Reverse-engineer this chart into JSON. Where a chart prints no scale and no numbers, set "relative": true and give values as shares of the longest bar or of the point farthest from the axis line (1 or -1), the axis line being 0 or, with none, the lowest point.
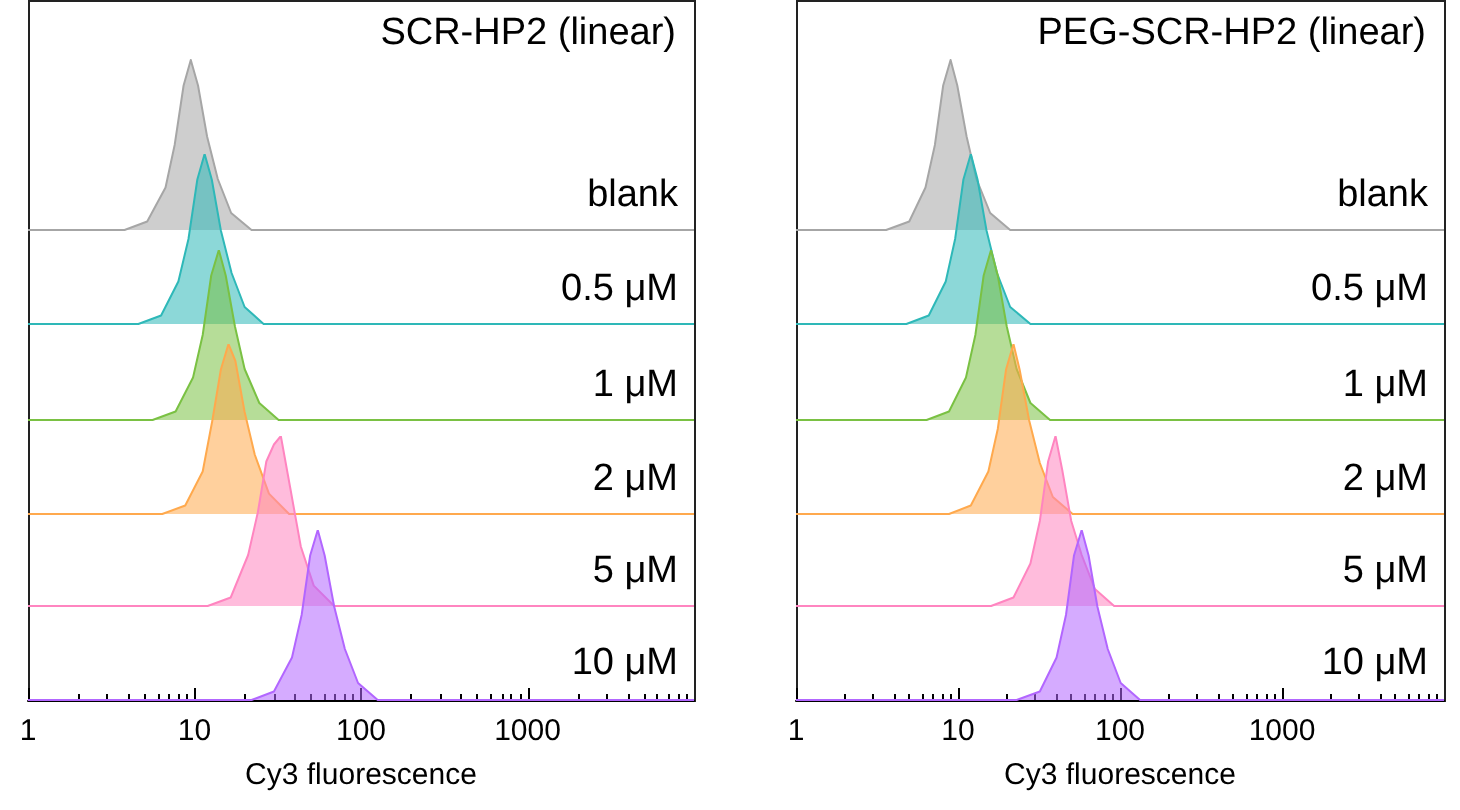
{
  "chart_data": [
    {
      "type": "area",
      "title": "SCR-HP2 (linear)",
      "relative": true,
      "log": "x",
      "xlim": [
        1,
        10000
      ],
      "xticks": [
        1,
        10,
        100,
        1000
      ],
      "tick_labels": false,
      "series": [
        {
          "name": "blank",
          "color": "#a6a6a6",
          "x": [
            1,
            3.8,
            5.2,
            6.7,
            7.6,
            8.6,
            9.5,
            10.5,
            11.9,
            13.8,
            16.6,
            22,
            10000
          ],
          "values": [
            0,
            0,
            0.05,
            0.25,
            0.5,
            0.85,
            1,
            0.85,
            0.55,
            0.3,
            0.1,
            0,
            0
          ]
        }
      ]
    },
    {
      "type": "area",
      "relative": true,
      "log": "x",
      "xlim": [
        1,
        10000
      ],
      "xticks": [
        1,
        10,
        100,
        1000
      ],
      "tick_labels": false,
      "series": [
        {
          "name": "0.5 μM",
          "color": "#2eb8b8",
          "x": [
            1,
            4.6,
            6.3,
            8,
            9.2,
            10.4,
            11.5,
            12.7,
            14.4,
            16.7,
            20,
            26,
            10000
          ],
          "values": [
            0,
            0,
            0.05,
            0.25,
            0.5,
            0.85,
            1,
            0.85,
            0.55,
            0.3,
            0.1,
            0,
            0
          ]
        }
      ]
    },
    {
      "type": "area",
      "relative": true,
      "log": "x",
      "xlim": [
        1,
        10000
      ],
      "xticks": [
        1,
        10,
        100,
        1000
      ],
      "tick_labels": false,
      "series": [
        {
          "name": "1 μM",
          "color": "#7ac143",
          "x": [
            1,
            5.6,
            7.7,
            9.8,
            11.2,
            12.6,
            14,
            15.4,
            17.5,
            20,
            24.5,
            32,
            10000
          ],
          "values": [
            0,
            0,
            0.05,
            0.25,
            0.5,
            0.85,
            1,
            0.85,
            0.55,
            0.3,
            0.1,
            0,
            0
          ]
        }
      ]
    },
    {
      "type": "area",
      "relative": true,
      "log": "x",
      "xlim": [
        1,
        10000
      ],
      "xticks": [
        1,
        10,
        100,
        1000
      ],
      "tick_labels": false,
      "series": [
        {
          "name": "2 μM",
          "color": "#ffa94d",
          "x": [
            1,
            6.4,
            8.8,
            11.2,
            12.8,
            14.4,
            16,
            17.6,
            20,
            23,
            28,
            37,
            10000
          ],
          "values": [
            0,
            0,
            0.05,
            0.25,
            0.55,
            0.85,
            1,
            0.9,
            0.6,
            0.35,
            0.12,
            0,
            0
          ]
        }
      ]
    },
    {
      "type": "area",
      "relative": true,
      "log": "x",
      "xlim": [
        1,
        10000
      ],
      "xticks": [
        1,
        10,
        100,
        1000
      ],
      "tick_labels": false,
      "series": [
        {
          "name": "5 μM",
          "color": "#ff85c0",
          "x": [
            1,
            12,
            16.5,
            21,
            24,
            27,
            30,
            33,
            37.5,
            43.5,
            52,
            69,
            10000
          ],
          "values": [
            0,
            0,
            0.05,
            0.3,
            0.55,
            0.85,
            0.95,
            1,
            0.7,
            0.35,
            0.12,
            0,
            0
          ]
        }
      ]
    },
    {
      "type": "area",
      "xlabel": "Cy3 fluorescence",
      "relative": true,
      "log": "x",
      "xlim": [
        1,
        10000
      ],
      "xticks": [
        1,
        10,
        100,
        1000
      ],
      "tick_labels": "x",
      "series": [
        {
          "name": "10 μM",
          "color": "#b266ff",
          "x": [
            1,
            22,
            30,
            38.5,
            44,
            49.5,
            55,
            60.5,
            69,
            80,
            96,
            126,
            10000
          ],
          "values": [
            0,
            0,
            0.05,
            0.25,
            0.5,
            0.85,
            1,
            0.85,
            0.55,
            0.3,
            0.1,
            0,
            0
          ]
        }
      ]
    },
    {
      "type": "area",
      "title": "PEG-SCR-HP2 (linear)",
      "relative": true,
      "log": "x",
      "xlim": [
        1,
        10000
      ],
      "xticks": [
        1,
        10,
        100,
        1000
      ],
      "tick_labels": false,
      "series": [
        {
          "name": "blank",
          "color": "#a6a6a6",
          "x": [
            1,
            3.6,
            5,
            6.3,
            7.2,
            8.1,
            9,
            9.9,
            11.3,
            13,
            15.8,
            21,
            10000
          ],
          "values": [
            0,
            0,
            0.05,
            0.25,
            0.5,
            0.85,
            1,
            0.85,
            0.55,
            0.3,
            0.1,
            0,
            0
          ]
        }
      ]
    },
    {
      "type": "area",
      "relative": true,
      "log": "x",
      "xlim": [
        1,
        10000
      ],
      "xticks": [
        1,
        10,
        100,
        1000
      ],
      "tick_labels": false,
      "series": [
        {
          "name": "0.5 μM",
          "color": "#2eb8b8",
          "x": [
            1,
            4.8,
            6.6,
            8.4,
            9.6,
            10.8,
            12,
            13.2,
            15,
            17.4,
            21,
            28,
            10000
          ],
          "values": [
            0,
            0,
            0.05,
            0.25,
            0.5,
            0.85,
            1,
            0.85,
            0.55,
            0.3,
            0.1,
            0,
            0
          ]
        }
      ]
    },
    {
      "type": "area",
      "relative": true,
      "log": "x",
      "xlim": [
        1,
        10000
      ],
      "xticks": [
        1,
        10,
        100,
        1000
      ],
      "tick_labels": false,
      "series": [
        {
          "name": "1 μM",
          "color": "#7ac143",
          "x": [
            1,
            6.4,
            8.8,
            11.2,
            12.8,
            14.4,
            16,
            17.6,
            20,
            23,
            28,
            37,
            10000
          ],
          "values": [
            0,
            0,
            0.05,
            0.25,
            0.5,
            0.85,
            1,
            0.85,
            0.55,
            0.3,
            0.1,
            0,
            0
          ]
        }
      ]
    },
    {
      "type": "area",
      "relative": true,
      "log": "x",
      "xlim": [
        1,
        10000
      ],
      "xticks": [
        1,
        10,
        100,
        1000
      ],
      "tick_labels": false,
      "series": [
        {
          "name": "2 μM",
          "color": "#ffa94d",
          "x": [
            1,
            8.8,
            12,
            15.4,
            17.6,
            19.8,
            22,
            24,
            27.5,
            32,
            38.5,
            51,
            10000
          ],
          "values": [
            0,
            0,
            0.05,
            0.25,
            0.5,
            0.85,
            1,
            0.85,
            0.55,
            0.3,
            0.1,
            0,
            0
          ]
        }
      ]
    },
    {
      "type": "area",
      "relative": true,
      "log": "x",
      "xlim": [
        1,
        10000
      ],
      "xticks": [
        1,
        10,
        100,
        1000
      ],
      "tick_labels": false,
      "series": [
        {
          "name": "5 μM",
          "color": "#ff85c0",
          "x": [
            1,
            16,
            22,
            28,
            32,
            36,
            40,
            44,
            50,
            58,
            70,
            92,
            10000
          ],
          "values": [
            0,
            0,
            0.05,
            0.25,
            0.5,
            0.85,
            1,
            0.8,
            0.5,
            0.3,
            0.1,
            0,
            0
          ]
        }
      ]
    },
    {
      "type": "area",
      "xlabel": "Cy3 fluorescence",
      "relative": true,
      "log": "x",
      "xlim": [
        1,
        10000
      ],
      "xticks": [
        1,
        10,
        100,
        1000
      ],
      "tick_labels": "x",
      "series": [
        {
          "name": "10 μM",
          "color": "#b266ff",
          "x": [
            1,
            23,
            32,
            40.6,
            46.4,
            52,
            58,
            64,
            72.5,
            84,
            101,
            133,
            10000
          ],
          "values": [
            0,
            0,
            0.05,
            0.25,
            0.5,
            0.85,
            1,
            0.85,
            0.55,
            0.3,
            0.1,
            0,
            0
          ]
        }
      ]
    }
  ]
}
